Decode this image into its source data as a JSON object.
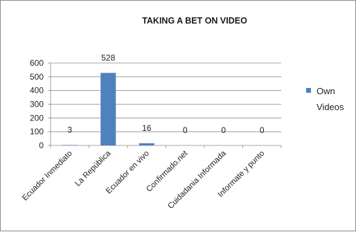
{
  "chart_data": {
    "type": "bar",
    "title": "TAKING A BET ON VIDEO",
    "xlabel": "",
    "ylabel": "",
    "categories": [
      "Ecuador Inmediato",
      "La República",
      "Ecuador en vivo",
      "Confirmado.net",
      "Cuidadania Informada",
      "Informate y punto"
    ],
    "series": [
      {
        "name": "Own Videos",
        "values": [
          3,
          528,
          16,
          0,
          0,
          0
        ],
        "color": "#4f81bd"
      }
    ],
    "ylim": [
      0,
      600
    ],
    "yticks": [
      0,
      100,
      200,
      300,
      400,
      500,
      600
    ],
    "grid": true,
    "legend_position": "right",
    "data_labels": true
  },
  "legend": {
    "lines": [
      "Own",
      "Videos"
    ]
  }
}
